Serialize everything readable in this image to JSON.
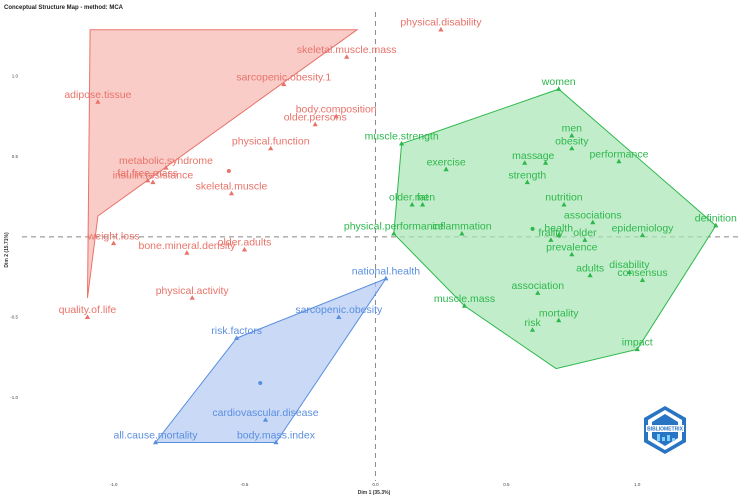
{
  "chart_data": {
    "type": "scatter",
    "title": "Conceptual Structure Map - method: MCA",
    "xlabel": "Dim 1 (35.3%)",
    "ylabel": "Dim 2 (15.71%)",
    "xlim": [
      -1.35,
      1.4
    ],
    "ylim": [
      -1.52,
      1.4
    ],
    "x_ticks": [
      -1.0,
      -0.5,
      0.0,
      0.5,
      1.0
    ],
    "x_tick_labels": [
      "-1.0",
      "-0.5",
      "0.0",
      "0.5",
      "1.0"
    ],
    "y_ticks": [
      -1.0,
      -0.5,
      0.5,
      1.0
    ],
    "y_tick_labels": [
      "-1.0",
      "-0.5",
      "0.5",
      "1.0"
    ],
    "reference_lines": {
      "x": 0,
      "y": 0
    },
    "clusters": [
      {
        "id": 1,
        "color": "#e8736a",
        "fill": "#f7b7b1",
        "hull": [
          [
            -1.09,
            1.29
          ],
          [
            -0.07,
            1.29
          ],
          [
            -1.06,
            0.13
          ],
          [
            -1.1,
            -0.38
          ]
        ],
        "centroid": [
          -0.56,
          0.41
        ],
        "points": [
          {
            "term": "physical.disability",
            "x": 0.25,
            "y": 1.29
          },
          {
            "term": "skeletal.muscle.mass",
            "x": -0.11,
            "y": 1.12
          },
          {
            "term": "sarcopenic.obesity.1",
            "x": -0.35,
            "y": 0.95
          },
          {
            "term": "adipose.tissue",
            "x": -1.06,
            "y": 0.84
          },
          {
            "term": "body.composition",
            "x": -0.15,
            "y": 0.75
          },
          {
            "term": "older.persons",
            "x": -0.23,
            "y": 0.7
          },
          {
            "term": "physical.function",
            "x": -0.4,
            "y": 0.55
          },
          {
            "term": "metabolic.syndrome",
            "x": -0.8,
            "y": 0.43
          },
          {
            "term": "fat.free.mass",
            "x": -0.87,
            "y": 0.35
          },
          {
            "term": "insulin.resistance",
            "x": -0.85,
            "y": 0.34
          },
          {
            "term": "skeletal.muscle",
            "x": -0.55,
            "y": 0.27
          },
          {
            "term": "weight.loss",
            "x": -1.0,
            "y": -0.04
          },
          {
            "term": "older.adults",
            "x": -0.5,
            "y": -0.08
          },
          {
            "term": "bone.mineral.density",
            "x": -0.72,
            "y": -0.1
          },
          {
            "term": "physical.activity",
            "x": -0.7,
            "y": -0.38
          },
          {
            "term": "quality.of.life",
            "x": -1.1,
            "y": -0.5
          }
        ]
      },
      {
        "id": 2,
        "color": "#2db84d",
        "fill": "#a8e5b3",
        "hull": [
          [
            0.7,
            0.92
          ],
          [
            1.3,
            0.07
          ],
          [
            1.0,
            -0.7
          ],
          [
            0.69,
            -0.82
          ],
          [
            0.34,
            -0.43
          ],
          [
            0.07,
            0.02
          ],
          [
            0.1,
            0.58
          ]
        ],
        "centroid": [
          0.6,
          0.05
        ],
        "points": [
          {
            "term": "women",
            "x": 0.7,
            "y": 0.92
          },
          {
            "term": "men",
            "x": 0.75,
            "y": 0.63
          },
          {
            "term": "muscle.strength",
            "x": 0.1,
            "y": 0.58
          },
          {
            "term": "obesity",
            "x": 0.75,
            "y": 0.55
          },
          {
            "term": "mass",
            "x": 0.57,
            "y": 0.46
          },
          {
            "term": "age",
            "x": 0.65,
            "y": 0.46
          },
          {
            "term": "exercise",
            "x": 0.27,
            "y": 0.42
          },
          {
            "term": "performance",
            "x": 0.93,
            "y": 0.47
          },
          {
            "term": "strength",
            "x": 0.58,
            "y": 0.34
          },
          {
            "term": "fat",
            "x": 0.18,
            "y": 0.2
          },
          {
            "term": "older.men",
            "x": 0.14,
            "y": 0.2
          },
          {
            "term": "nutrition",
            "x": 0.72,
            "y": 0.2
          },
          {
            "term": "associations",
            "x": 0.83,
            "y": 0.09
          },
          {
            "term": "physical.performance",
            "x": 0.07,
            "y": 0.02
          },
          {
            "term": "inflammation",
            "x": 0.33,
            "y": 0.02
          },
          {
            "term": "health",
            "x": 0.7,
            "y": 0.01
          },
          {
            "term": "frailty",
            "x": 0.67,
            "y": -0.02
          },
          {
            "term": "older",
            "x": 0.8,
            "y": -0.02
          },
          {
            "term": "epidemiology",
            "x": 1.02,
            "y": 0.01
          },
          {
            "term": "definition",
            "x": 1.3,
            "y": 0.07
          },
          {
            "term": "prevalence",
            "x": 0.75,
            "y": -0.11
          },
          {
            "term": "disability",
            "x": 0.97,
            "y": -0.22
          },
          {
            "term": "adults",
            "x": 0.82,
            "y": -0.24
          },
          {
            "term": "consensus",
            "x": 1.02,
            "y": -0.27
          },
          {
            "term": "association",
            "x": 0.62,
            "y": -0.35
          },
          {
            "term": "muscle.mass",
            "x": 0.34,
            "y": -0.43
          },
          {
            "term": "mortality",
            "x": 0.7,
            "y": -0.52
          },
          {
            "term": "risk",
            "x": 0.6,
            "y": -0.58
          },
          {
            "term": "impact",
            "x": 1.0,
            "y": -0.7
          }
        ]
      },
      {
        "id": 3,
        "color": "#5a8fe0",
        "fill": "#b2c9f2",
        "hull": [
          [
            0.04,
            -0.26
          ],
          [
            -0.53,
            -0.63
          ],
          [
            -0.84,
            -1.28
          ],
          [
            -0.38,
            -1.28
          ]
        ],
        "centroid": [
          -0.44,
          -0.91
        ],
        "points": [
          {
            "term": "national.health",
            "x": 0.04,
            "y": -0.26
          },
          {
            "term": "sarcopenic.obesity",
            "x": -0.14,
            "y": -0.5
          },
          {
            "term": "risk.factors",
            "x": -0.53,
            "y": -0.63
          },
          {
            "term": "cardiovascular.disease",
            "x": -0.42,
            "y": -1.14
          },
          {
            "term": "all.cause.mortality",
            "x": -0.84,
            "y": -1.28
          },
          {
            "term": "body.mass.index",
            "x": -0.38,
            "y": -1.28
          }
        ]
      }
    ]
  },
  "badge": {
    "text": "BIBLIOMETRIX",
    "color": "#2a74c4"
  }
}
